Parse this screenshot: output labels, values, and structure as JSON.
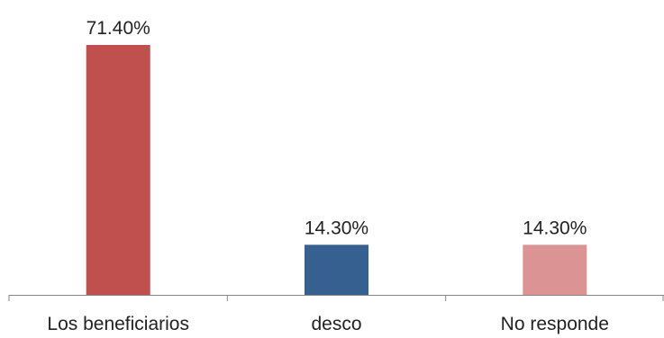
{
  "chart_data": {
    "type": "bar",
    "categories": [
      "Los beneficiarios",
      "desco",
      "No responde"
    ],
    "values": [
      71.4,
      14.3,
      14.3
    ],
    "data_labels": [
      "71.40%",
      "14.30%",
      "14.30%"
    ],
    "unit": "%",
    "bar_colors": [
      "#C0504D",
      "#36608F",
      "#DC9393"
    ],
    "axis_color": "#868686",
    "title": "",
    "xlabel": "",
    "ylabel": "",
    "ylim": [
      0,
      80
    ],
    "grid": false,
    "legend": false
  }
}
